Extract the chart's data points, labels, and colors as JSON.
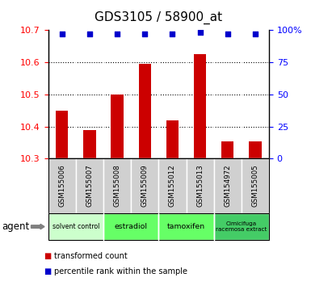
{
  "title": "GDS3105 / 58900_at",
  "samples": [
    "GSM155006",
    "GSM155007",
    "GSM155008",
    "GSM155009",
    "GSM155012",
    "GSM155013",
    "GSM154972",
    "GSM155005"
  ],
  "bar_values": [
    10.45,
    10.39,
    10.5,
    10.595,
    10.42,
    10.625,
    10.355,
    10.355
  ],
  "percentile_values": [
    97,
    97,
    97,
    97,
    97,
    98,
    97,
    97
  ],
  "ylim_left": [
    10.3,
    10.7
  ],
  "ylim_right": [
    0,
    100
  ],
  "yticks_left": [
    10.3,
    10.4,
    10.5,
    10.6,
    10.7
  ],
  "yticks_right": [
    0,
    25,
    50,
    75,
    100
  ],
  "bar_color": "#cc0000",
  "dot_color": "#0000cc",
  "agent_groups": [
    {
      "label": "solvent control",
      "start": 0,
      "end": 2,
      "color": "#ccffcc",
      "fontsize": 7.5
    },
    {
      "label": "estradiol",
      "start": 2,
      "end": 4,
      "color": "#66ff66",
      "fontsize": 9
    },
    {
      "label": "tamoxifen",
      "start": 4,
      "end": 6,
      "color": "#66ff66",
      "fontsize": 9
    },
    {
      "label": "Cimicifuga\nracemosa extract",
      "start": 6,
      "end": 8,
      "color": "#44cc66",
      "fontsize": 7
    }
  ],
  "legend_bar_label": "transformed count",
  "legend_dot_label": "percentile rank within the sample",
  "bar_width": 0.45,
  "plot_bg": "#ffffff",
  "fig_bg": "#ffffff",
  "gsm_bg": "#d0d0d0"
}
